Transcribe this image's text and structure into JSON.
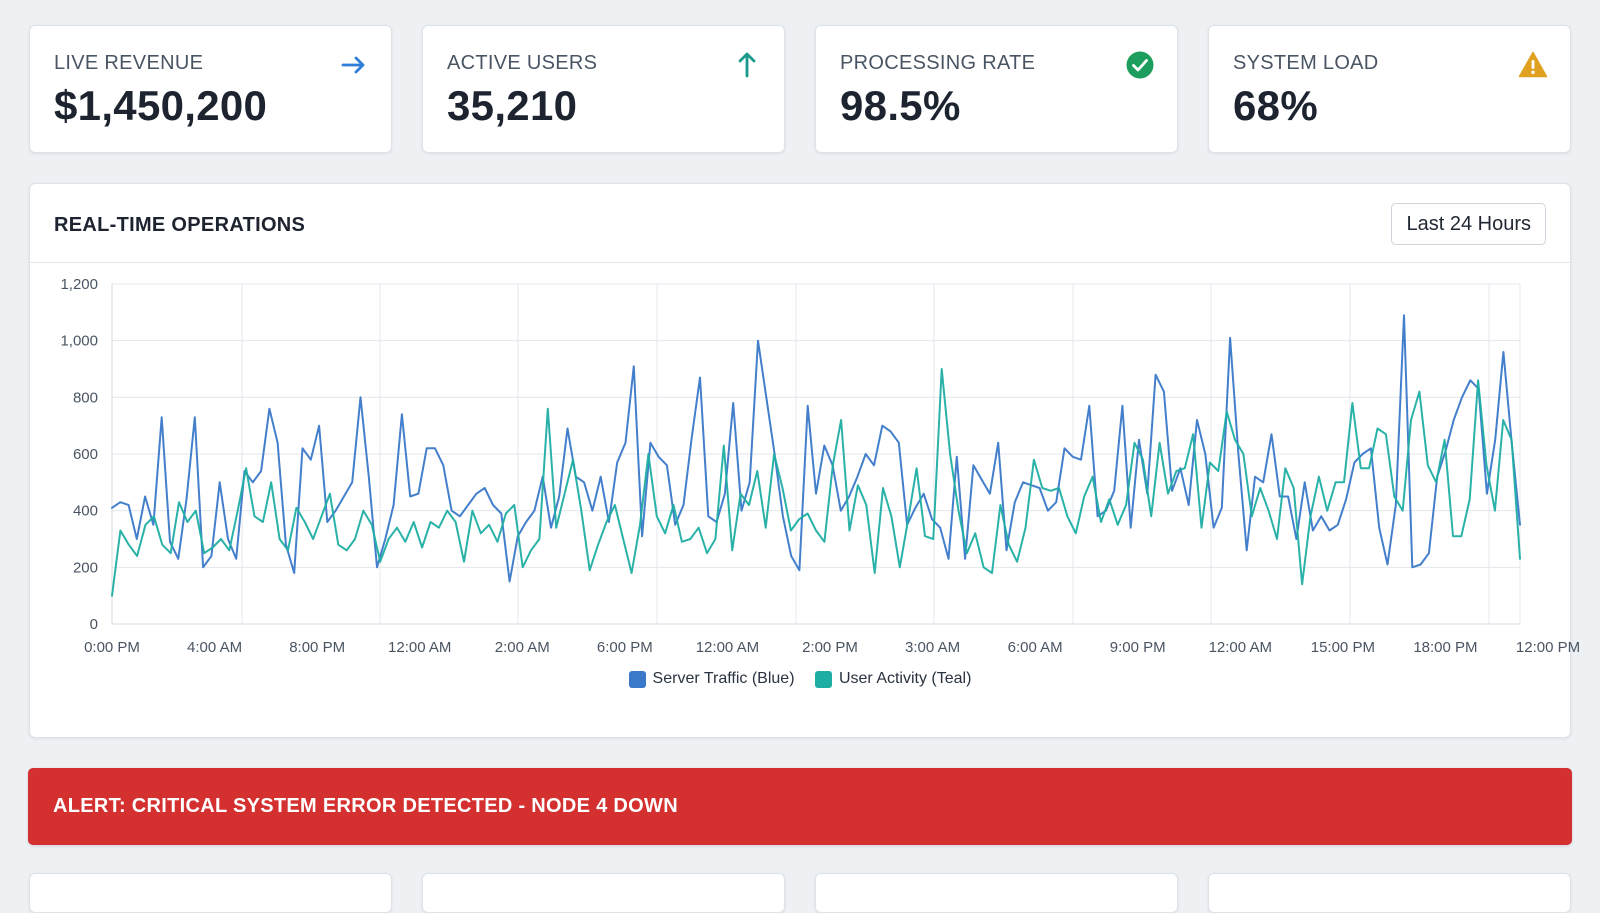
{
  "kpis": [
    {
      "label": "LIVE REVENUE",
      "value": "$1,450,200",
      "icon": "arrow-right-icon",
      "icon_color": "#2f7fd8"
    },
    {
      "label": "ACTIVE USERS",
      "value": "35,210",
      "icon": "arrow-up-icon",
      "icon_color": "#1a9a8a"
    },
    {
      "label": "PROCESSING RATE",
      "value": "98.5%",
      "icon": "check-circle-icon",
      "icon_color": "#1e9e5e"
    },
    {
      "label": "SYSTEM LOAD",
      "value": "68%",
      "icon": "warning-triangle-icon",
      "icon_color": "#e0a020"
    }
  ],
  "operations": {
    "title": "REAL-TIME OPERATIONS",
    "range_button_label": "Last 24 Hours"
  },
  "alert": {
    "text": "ALERT: CRITICAL SYSTEM ERROR DETECTED - NODE 4 DOWN",
    "color": "#d3302f"
  },
  "chart_data": {
    "type": "line",
    "title": "",
    "xlabel": "",
    "ylabel": "",
    "ylim": [
      0,
      1200
    ],
    "yticks": [
      0,
      200,
      400,
      600,
      800,
      1000,
      1200
    ],
    "x_tick_labels": [
      "0:00 PM",
      "4:00 AM",
      "8:00 PM",
      "12:00 AM",
      "2:00 AM",
      "6:00 PM",
      "12:00 AM",
      "2:00 PM",
      "3:00 AM",
      "6:00 AM",
      "9:00 PM",
      "12:00 AM",
      "15:00 PM",
      "18:00 PM",
      "12:00 PM"
    ],
    "grid": true,
    "legend_position": "bottom-center",
    "series": [
      {
        "name": "Server Traffic (Blue)",
        "color": "#3a78c9",
        "values": [
          410,
          430,
          420,
          300,
          450,
          350,
          730,
          290,
          230,
          440,
          730,
          200,
          240,
          500,
          300,
          230,
          540,
          500,
          540,
          760,
          640,
          280,
          180,
          620,
          580,
          700,
          360,
          400,
          450,
          500,
          800,
          520,
          200,
          300,
          420,
          740,
          450,
          460,
          620,
          620,
          560,
          400,
          380,
          420,
          460,
          480,
          420,
          390,
          150,
          310,
          360,
          400,
          520,
          340,
          450,
          690,
          520,
          500,
          400,
          520,
          360,
          570,
          640,
          910,
          310,
          640,
          590,
          560,
          350,
          420,
          660,
          870,
          380,
          360,
          460,
          780,
          400,
          500,
          1000,
          800,
          600,
          380,
          240,
          190,
          770,
          460,
          630,
          560,
          400,
          450,
          520,
          600,
          560,
          700,
          680,
          640,
          350,
          410,
          460,
          370,
          340,
          230,
          590,
          230,
          560,
          510,
          460,
          640,
          260,
          430,
          500,
          490,
          480,
          400,
          430,
          620,
          590,
          580,
          770,
          380,
          400,
          470,
          770,
          340,
          650,
          460,
          880,
          820,
          470,
          550,
          420,
          720,
          600,
          340,
          410,
          1010,
          600,
          260,
          520,
          500,
          670,
          450,
          450,
          300,
          500,
          330,
          380,
          330,
          350,
          440,
          570,
          600,
          620,
          340,
          210,
          420,
          1090,
          200,
          210,
          250,
          520,
          610,
          720,
          800,
          860,
          830,
          460,
          650,
          960,
          640,
          350
        ],
        "secondary": false
      },
      {
        "name": "User Activity (Teal)",
        "color": "#1faea3",
        "values": [
          100,
          330,
          280,
          240,
          350,
          380,
          280,
          250,
          430,
          360,
          400,
          250,
          270,
          300,
          260,
          400,
          550,
          380,
          360,
          500,
          300,
          260,
          410,
          360,
          300,
          380,
          460,
          280,
          260,
          300,
          400,
          350,
          220,
          300,
          340,
          290,
          360,
          270,
          360,
          340,
          400,
          360,
          220,
          400,
          320,
          350,
          290,
          390,
          420,
          200,
          260,
          300,
          760,
          340,
          460,
          580,
          400,
          190,
          280,
          360,
          420,
          300,
          180,
          350,
          600,
          380,
          320,
          420,
          290,
          300,
          340,
          250,
          300,
          630,
          260,
          460,
          420,
          540,
          340,
          600,
          480,
          330,
          370,
          390,
          330,
          290,
          560,
          720,
          330,
          490,
          420,
          180,
          480,
          380,
          200,
          370,
          550,
          310,
          300,
          900,
          600,
          400,
          250,
          320,
          200,
          180,
          420,
          280,
          220,
          340,
          580,
          480,
          470,
          480,
          380,
          320,
          450,
          520,
          360,
          440,
          350,
          420,
          640,
          580,
          380,
          640,
          460,
          540,
          550,
          670,
          340,
          570,
          540,
          750,
          650,
          600,
          380,
          480,
          400,
          300,
          550,
          480,
          140,
          380,
          520,
          400,
          500,
          500,
          780,
          550,
          550,
          690,
          670,
          450,
          400,
          720,
          820,
          560,
          500,
          650,
          310,
          310,
          440,
          860,
          560,
          400,
          720,
          650,
          230
        ],
        "secondary": true
      }
    ]
  }
}
